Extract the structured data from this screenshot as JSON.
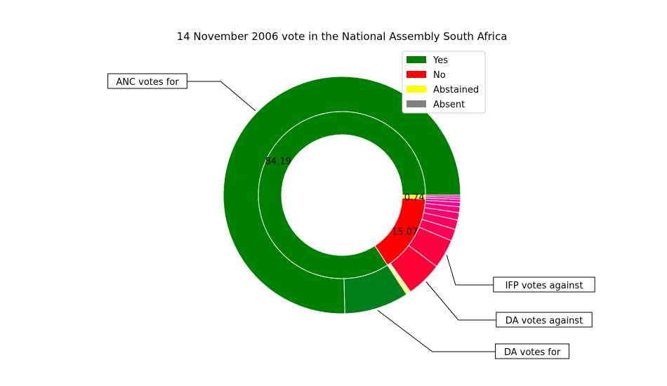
{
  "chart_data": {
    "type": "pie",
    "style": "nested-donut",
    "title": "14 November 2006 vote in the National Assembly South Africa",
    "inner_ring": {
      "categories": [
        "Yes",
        "No",
        "Abstained"
      ],
      "values": [
        84.19,
        15.07,
        0.74
      ],
      "colors": [
        "#008000",
        "#ff0000",
        "#ffff00"
      ],
      "value_labels": [
        "84.19",
        "15.07",
        "0.74"
      ]
    },
    "outer_ring": {
      "note": "party breakdown; values in percent of seats",
      "values": [
        75.4,
        8.79,
        0.21,
        0.21,
        0.21,
        4.9,
        4.0,
        1.6,
        1.3,
        1.0,
        0.8,
        0.6,
        0.4,
        0.3,
        0.28
      ],
      "colors": [
        "#008000",
        "#007f1a",
        "#ffff00",
        "#ffff33",
        "#ffff66",
        "#ff0033",
        "#ff0040",
        "#ff0055",
        "#ff005f",
        "#ff0069",
        "#ff0077",
        "#ff0088",
        "#ff0099",
        "#ff00aa",
        "#ff00bb"
      ]
    },
    "legend": {
      "placement": "top-right",
      "entries": [
        {
          "label": "Yes",
          "color": "#008000"
        },
        {
          "label": "No",
          "color": "#ff0000"
        },
        {
          "label": "Abstained",
          "color": "#ffff00"
        },
        {
          "label": "Absent",
          "color": "#808080"
        }
      ]
    },
    "annotations": [
      {
        "text": "ANC votes for",
        "slice": 0
      },
      {
        "text": "IFP votes against",
        "slice": 6
      },
      {
        "text": "DA votes against",
        "slice": 5
      },
      {
        "text": "DA votes for",
        "slice": 1
      }
    ]
  }
}
